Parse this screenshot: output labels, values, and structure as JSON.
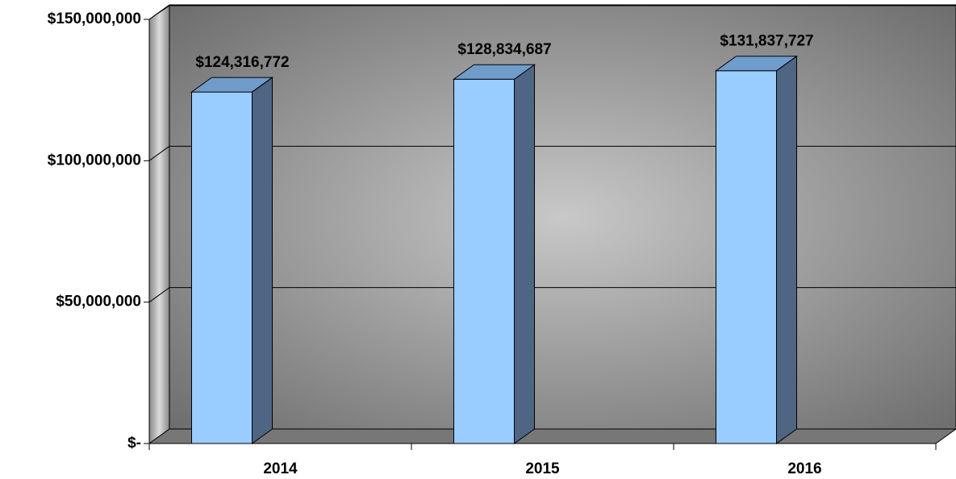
{
  "chart_data": {
    "type": "bar3d",
    "categories": [
      "2014",
      "2015",
      "2016"
    ],
    "values": [
      124316772,
      128834687,
      131837727
    ],
    "value_labels": [
      "$124,316,772",
      "$128,834,687",
      "$131,837,727"
    ],
    "color": "#99ccff",
    "ylim": [
      0,
      150000000
    ],
    "yticks": [
      {
        "value": 0,
        "label": "$-"
      },
      {
        "value": 50000000,
        "label": "$50,000,000"
      },
      {
        "value": 100000000,
        "label": "$100,000,000"
      },
      {
        "value": 150000000,
        "label": "$150,000,000"
      }
    ],
    "grid": true
  }
}
